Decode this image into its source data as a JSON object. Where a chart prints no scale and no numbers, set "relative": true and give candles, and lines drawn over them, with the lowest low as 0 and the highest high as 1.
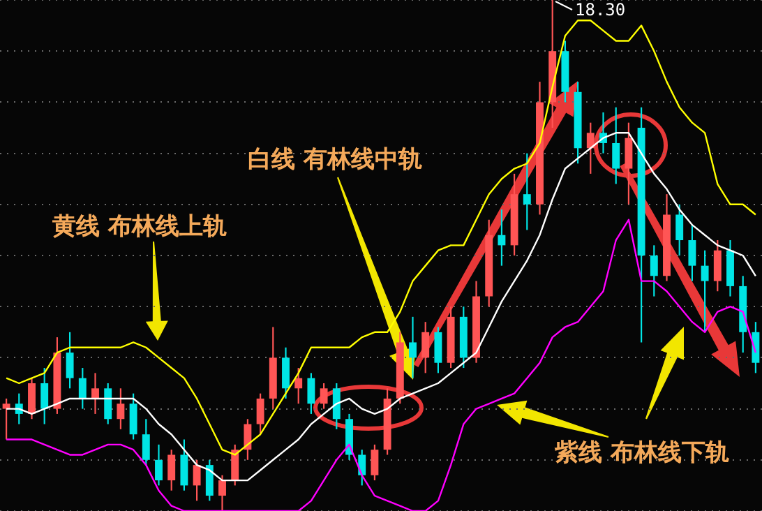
{
  "chart_data": {
    "type": "candlestick",
    "relative": true,
    "grid": "y",
    "legend": false,
    "categories": [
      null,
      null,
      null,
      null,
      null,
      null,
      null,
      null,
      null,
      null,
      null,
      null,
      null,
      null,
      null,
      null,
      null,
      null,
      null,
      null,
      null,
      null,
      null,
      null,
      null,
      null,
      null,
      null,
      null,
      null,
      null,
      null,
      null,
      null,
      null,
      null,
      null,
      null,
      null,
      null,
      null,
      null,
      null,
      null,
      null,
      null,
      null,
      null,
      null,
      null,
      null,
      null,
      null,
      null,
      null,
      null,
      null,
      null,
      null,
      null
    ],
    "ohlc": [
      [
        0.2,
        0.22,
        0.14,
        0.21
      ],
      [
        0.21,
        0.23,
        0.17,
        0.19
      ],
      [
        0.19,
        0.26,
        0.18,
        0.25
      ],
      [
        0.25,
        0.28,
        0.17,
        0.2
      ],
      [
        0.2,
        0.34,
        0.19,
        0.31
      ],
      [
        0.31,
        0.35,
        0.24,
        0.26
      ],
      [
        0.26,
        0.28,
        0.2,
        0.22
      ],
      [
        0.22,
        0.27,
        0.19,
        0.24
      ],
      [
        0.24,
        0.25,
        0.17,
        0.18
      ],
      [
        0.18,
        0.24,
        0.16,
        0.21
      ],
      [
        0.21,
        0.23,
        0.14,
        0.15
      ],
      [
        0.15,
        0.18,
        0.09,
        0.1
      ],
      [
        0.1,
        0.13,
        0.05,
        0.06
      ],
      [
        0.06,
        0.12,
        0.04,
        0.11
      ],
      [
        0.11,
        0.14,
        0.04,
        0.05
      ],
      [
        0.05,
        0.1,
        0.02,
        0.09
      ],
      [
        0.09,
        0.1,
        0.02,
        0.03
      ],
      [
        0.03,
        0.07,
        0.0,
        0.06
      ],
      [
        0.06,
        0.13,
        0.05,
        0.12
      ],
      [
        0.12,
        0.18,
        0.1,
        0.17
      ],
      [
        0.17,
        0.23,
        0.15,
        0.22
      ],
      [
        0.22,
        0.36,
        0.2,
        0.3
      ],
      [
        0.3,
        0.32,
        0.22,
        0.24
      ],
      [
        0.24,
        0.28,
        0.21,
        0.26
      ],
      [
        0.26,
        0.27,
        0.19,
        0.21
      ],
      [
        0.21,
        0.25,
        0.2,
        0.24
      ],
      [
        0.24,
        0.25,
        0.16,
        0.18
      ],
      [
        0.18,
        0.19,
        0.1,
        0.11
      ],
      [
        0.11,
        0.12,
        0.05,
        0.07
      ],
      [
        0.07,
        0.13,
        0.06,
        0.12
      ],
      [
        0.12,
        0.24,
        0.11,
        0.22
      ],
      [
        0.22,
        0.35,
        0.21,
        0.33
      ],
      [
        0.33,
        0.38,
        0.26,
        0.3
      ],
      [
        0.3,
        0.37,
        0.27,
        0.35
      ],
      [
        0.35,
        0.36,
        0.27,
        0.29
      ],
      [
        0.29,
        0.4,
        0.28,
        0.38
      ],
      [
        0.38,
        0.4,
        0.28,
        0.3
      ],
      [
        0.3,
        0.45,
        0.29,
        0.42
      ],
      [
        0.42,
        0.57,
        0.4,
        0.54
      ],
      [
        0.54,
        0.59,
        0.48,
        0.52
      ],
      [
        0.52,
        0.66,
        0.5,
        0.62
      ],
      [
        0.62,
        0.7,
        0.55,
        0.6
      ],
      [
        0.6,
        0.84,
        0.58,
        0.8
      ],
      [
        0.8,
        1.0,
        0.75,
        0.9
      ],
      [
        0.9,
        0.92,
        0.8,
        0.82
      ],
      [
        0.82,
        0.84,
        0.68,
        0.71
      ],
      [
        0.71,
        0.76,
        0.66,
        0.74
      ],
      [
        0.74,
        0.78,
        0.7,
        0.72
      ],
      [
        0.72,
        0.79,
        0.64,
        0.67
      ],
      [
        0.67,
        0.76,
        0.6,
        0.73
      ],
      [
        0.75,
        0.79,
        0.33,
        0.5
      ],
      [
        0.5,
        0.52,
        0.42,
        0.46
      ],
      [
        0.46,
        0.62,
        0.45,
        0.58
      ],
      [
        0.58,
        0.6,
        0.5,
        0.53
      ],
      [
        0.53,
        0.56,
        0.45,
        0.48
      ],
      [
        0.48,
        0.51,
        0.35,
        0.45
      ],
      [
        0.45,
        0.53,
        0.43,
        0.51
      ],
      [
        0.51,
        0.53,
        0.42,
        0.44
      ],
      [
        0.44,
        0.46,
        0.31,
        0.35
      ],
      [
        0.35,
        0.37,
        0.27,
        0.29
      ]
    ],
    "colors": [
      "#ff5555",
      "#00e5e5",
      "#ff5555",
      "#00e5e5",
      "#ff5555",
      "#00e5e5",
      "#00e5e5",
      "#ff5555",
      "#00e5e5",
      "#ff5555",
      "#00e5e5",
      "#00e5e5",
      "#00e5e5",
      "#ff5555",
      "#00e5e5",
      "#ff5555",
      "#00e5e5",
      "#ff5555",
      "#ff5555",
      "#ff5555",
      "#ff5555",
      "#ff5555",
      "#00e5e5",
      "#ff5555",
      "#00e5e5",
      "#ff5555",
      "#00e5e5",
      "#00e5e5",
      "#00e5e5",
      "#ff5555",
      "#ff5555",
      "#ff5555",
      "#00e5e5",
      "#ff5555",
      "#00e5e5",
      "#ff5555",
      "#00e5e5",
      "#ff5555",
      "#ff5555",
      "#00e5e5",
      "#ff5555",
      "#00e5e5",
      "#ff5555",
      "#ff5555",
      "#00e5e5",
      "#00e5e5",
      "#ff5555",
      "#00e5e5",
      "#00e5e5",
      "#ff5555",
      "#00e5e5",
      "#00e5e5",
      "#ff5555",
      "#00e5e5",
      "#00e5e5",
      "#00e5e5",
      "#ff5555",
      "#00e5e5",
      "#00e5e5",
      "#00e5e5"
    ],
    "series": [
      {
        "type": "line",
        "color": "#ffff00",
        "values": [
          0.26,
          0.25,
          0.26,
          0.27,
          0.31,
          0.32,
          0.32,
          0.32,
          0.32,
          0.32,
          0.33,
          0.32,
          0.3,
          0.28,
          0.26,
          0.22,
          0.17,
          0.12,
          0.11,
          0.13,
          0.15,
          0.19,
          0.23,
          0.27,
          0.32,
          0.32,
          0.32,
          0.32,
          0.34,
          0.35,
          0.35,
          0.39,
          0.45,
          0.48,
          0.51,
          0.52,
          0.52,
          0.57,
          0.62,
          0.65,
          0.67,
          0.68,
          0.72,
          0.83,
          0.93,
          0.96,
          0.96,
          0.94,
          0.92,
          0.92,
          0.95,
          0.9,
          0.84,
          0.79,
          0.76,
          0.74,
          0.64,
          0.6,
          0.6,
          0.58
        ]
      },
      {
        "type": "line",
        "color": "#ffffff",
        "values": [
          0.2,
          0.2,
          0.19,
          0.2,
          0.21,
          0.22,
          0.22,
          0.22,
          0.22,
          0.22,
          0.22,
          0.2,
          0.17,
          0.15,
          0.12,
          0.09,
          0.08,
          0.06,
          0.06,
          0.06,
          0.08,
          0.1,
          0.12,
          0.14,
          0.17,
          0.19,
          0.21,
          0.22,
          0.2,
          0.19,
          0.2,
          0.22,
          0.23,
          0.24,
          0.25,
          0.27,
          0.29,
          0.31,
          0.36,
          0.41,
          0.45,
          0.49,
          0.54,
          0.61,
          0.67,
          0.69,
          0.71,
          0.73,
          0.74,
          0.74,
          0.7,
          0.66,
          0.63,
          0.59,
          0.56,
          0.54,
          0.52,
          0.51,
          0.5,
          0.46
        ]
      },
      {
        "type": "line",
        "color": "#ff00ff",
        "values": [
          0.14,
          0.14,
          0.14,
          0.13,
          0.12,
          0.11,
          0.11,
          0.12,
          0.13,
          0.13,
          0.12,
          0.09,
          0.04,
          0.01,
          0.0,
          0.0,
          0.0,
          0.0,
          0.0,
          0.0,
          0.0,
          0.0,
          0.0,
          0.0,
          0.02,
          0.06,
          0.1,
          0.13,
          0.07,
          0.03,
          0.02,
          0.01,
          0.0,
          0.0,
          0.02,
          0.09,
          0.17,
          0.2,
          0.21,
          0.22,
          0.23,
          0.26,
          0.29,
          0.34,
          0.36,
          0.37,
          0.4,
          0.43,
          0.53,
          0.57,
          0.45,
          0.45,
          0.43,
          0.4,
          0.37,
          0.35,
          0.39,
          0.4,
          0.39,
          0.31
        ]
      }
    ],
    "annotations": [
      "黄线 布林线上轨",
      "白线 有林线中轨",
      "紫线 布林线下轨",
      "18.30"
    ]
  }
}
